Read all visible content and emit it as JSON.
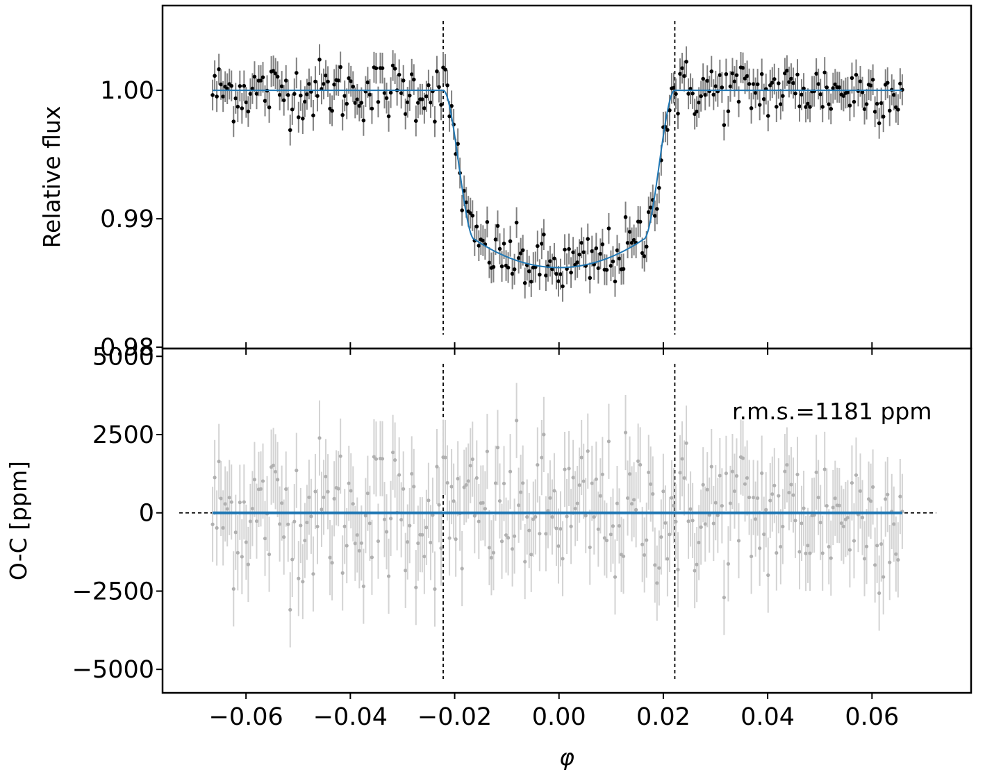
{
  "chart_data": [
    {
      "type": "scatter",
      "panel": "top",
      "xlabel": "",
      "ylabel": "Relative flux",
      "xlim": [
        -0.076,
        0.079
      ],
      "ylim": [
        0.9799,
        1.0066
      ],
      "x_ticks": [
        -0.06,
        -0.04,
        -0.02,
        0.0,
        0.02,
        0.04,
        0.06
      ],
      "y_ticks": [
        0.98,
        0.99,
        1.0
      ],
      "y_tick_labels": [
        "0.98",
        "0.99",
        "1.00"
      ],
      "vertical_lines": [
        -0.0222,
        0.0222
      ],
      "model": {
        "color": "#1f77b4",
        "baseline": 1.0,
        "depth_center": 0.9862,
        "t14_half": 0.0222,
        "t23_half": 0.0162,
        "limb_curvature": 0.0022
      },
      "data": {
        "x_start": -0.0664,
        "x_end": 0.0658,
        "n_points": 330,
        "scatter_1sigma": 0.00118,
        "errorbar": 0.0012,
        "point_color": "#000000",
        "errorbar_color": "#808080"
      }
    },
    {
      "type": "scatter",
      "panel": "bottom",
      "xlabel": "φ",
      "ylabel": "O-C [ppm]",
      "xlim": [
        -0.076,
        0.079
      ],
      "ylim": [
        -5750,
        5250
      ],
      "x_ticks": [
        -0.06,
        -0.04,
        -0.02,
        0.0,
        0.02,
        0.04,
        0.06
      ],
      "x_tick_labels": [
        "−0.06",
        "−0.04",
        "−0.02",
        "0.00",
        "0.02",
        "0.04",
        "0.06"
      ],
      "y_ticks": [
        -5000,
        -2500,
        0,
        2500,
        5000
      ],
      "y_tick_labels": [
        "−5000",
        "−2500",
        "0",
        "2500",
        "5000"
      ],
      "vertical_lines": [
        -0.0222,
        0.0222
      ],
      "zero_line": {
        "x_from": -0.0728,
        "x_to": 0.0723
      },
      "annotation": "r.m.s.=1181 ppm",
      "data": {
        "x_start": -0.0664,
        "x_end": 0.0658,
        "n_points": 330,
        "rms_ppm": 1181,
        "errorbar_ppm": 1200,
        "point_color": "#b0b0b0",
        "errorbar_color": "#d3d3d3",
        "model_color": "#1f77b4"
      }
    }
  ]
}
